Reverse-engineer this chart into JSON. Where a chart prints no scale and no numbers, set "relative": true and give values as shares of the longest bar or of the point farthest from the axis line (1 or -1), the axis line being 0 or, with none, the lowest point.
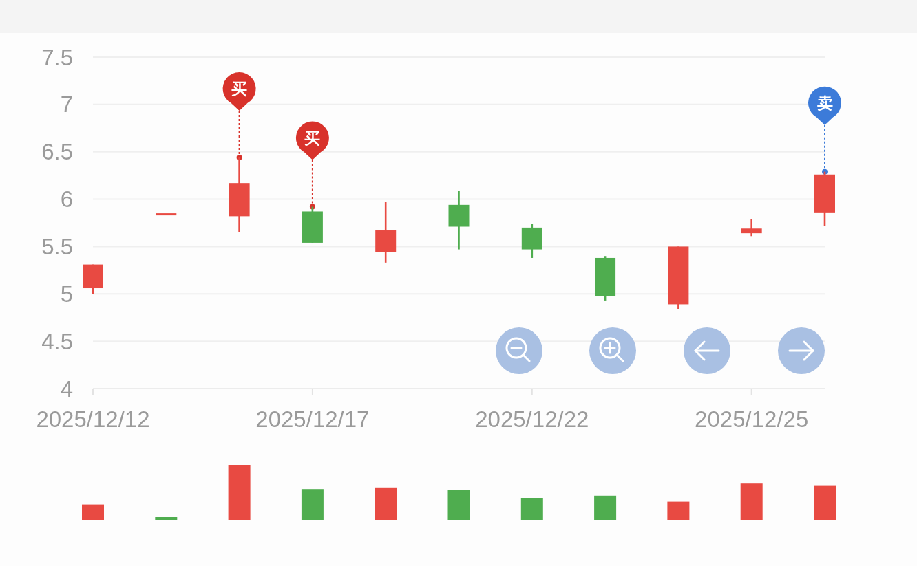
{
  "chart_data": [
    {
      "type": "candlestick",
      "categories": [
        "2025/12/12",
        null,
        null,
        "2025/12/17",
        null,
        null,
        "2025/12/22",
        null,
        null,
        "2025/12/25",
        null
      ],
      "ohlc": [
        [
          5.06,
          5.31,
          5.0,
          5.31
        ],
        [
          5.84,
          5.84,
          5.84,
          5.84
        ],
        [
          5.82,
          6.44,
          5.65,
          6.17
        ],
        [
          5.87,
          5.92,
          5.54,
          5.54
        ],
        [
          5.44,
          5.97,
          5.33,
          5.67
        ],
        [
          5.94,
          6.09,
          5.47,
          5.71
        ],
        [
          5.7,
          5.74,
          5.38,
          5.47
        ],
        [
          5.38,
          5.4,
          4.93,
          4.98
        ],
        [
          4.89,
          5.5,
          4.84,
          5.5
        ],
        [
          5.64,
          5.79,
          5.61,
          5.69
        ],
        [
          5.86,
          6.29,
          5.72,
          6.26
        ]
      ],
      "colors": [
        "#e84a42",
        "#e84a42",
        "#e84a42",
        "#4fad4f",
        "#e84a42",
        "#4fad4f",
        "#4fad4f",
        "#4fad4f",
        "#e84a42",
        "#e84a42",
        "#e84a42"
      ],
      "series": [
        {
          "type": "scatter",
          "marker": "circle",
          "color": "#d8322b",
          "values": [
            null,
            null,
            6.44,
            5.92,
            null,
            null,
            null,
            null,
            null,
            null,
            null
          ],
          "value_labels": [
            null,
            null,
            "买",
            "买",
            null,
            null,
            null,
            null,
            null,
            null,
            null
          ]
        },
        {
          "type": "scatter",
          "marker": "circle",
          "color": "#3c7bd9",
          "values": [
            null,
            null,
            null,
            null,
            null,
            null,
            null,
            null,
            null,
            null,
            6.29
          ],
          "value_labels": [
            null,
            null,
            null,
            null,
            null,
            null,
            null,
            null,
            null,
            null,
            "卖"
          ]
        }
      ],
      "ylim": [
        4,
        7.5
      ],
      "yticks": [
        4,
        4.5,
        5,
        5.5,
        6,
        6.5,
        7,
        7.5
      ],
      "grid": "y"
    },
    {
      "type": "bar",
      "categories": [
        "2025/12/12",
        null,
        null,
        "2025/12/17",
        null,
        null,
        "2025/12/22",
        null,
        null,
        "2025/12/25",
        null
      ],
      "values": [
        0.28,
        0.05,
        1,
        0.56,
        0.59,
        0.54,
        0.4,
        0.44,
        0.33,
        0.66,
        0.63
      ],
      "colors": [
        "#e84a42",
        "#4fad4f",
        "#e84a42",
        "#4fad4f",
        "#e84a42",
        "#4fad4f",
        "#4fad4f",
        "#4fad4f",
        "#e84a42",
        "#e84a42",
        "#e84a42"
      ],
      "relative": true,
      "tick_labels": false
    }
  ]
}
